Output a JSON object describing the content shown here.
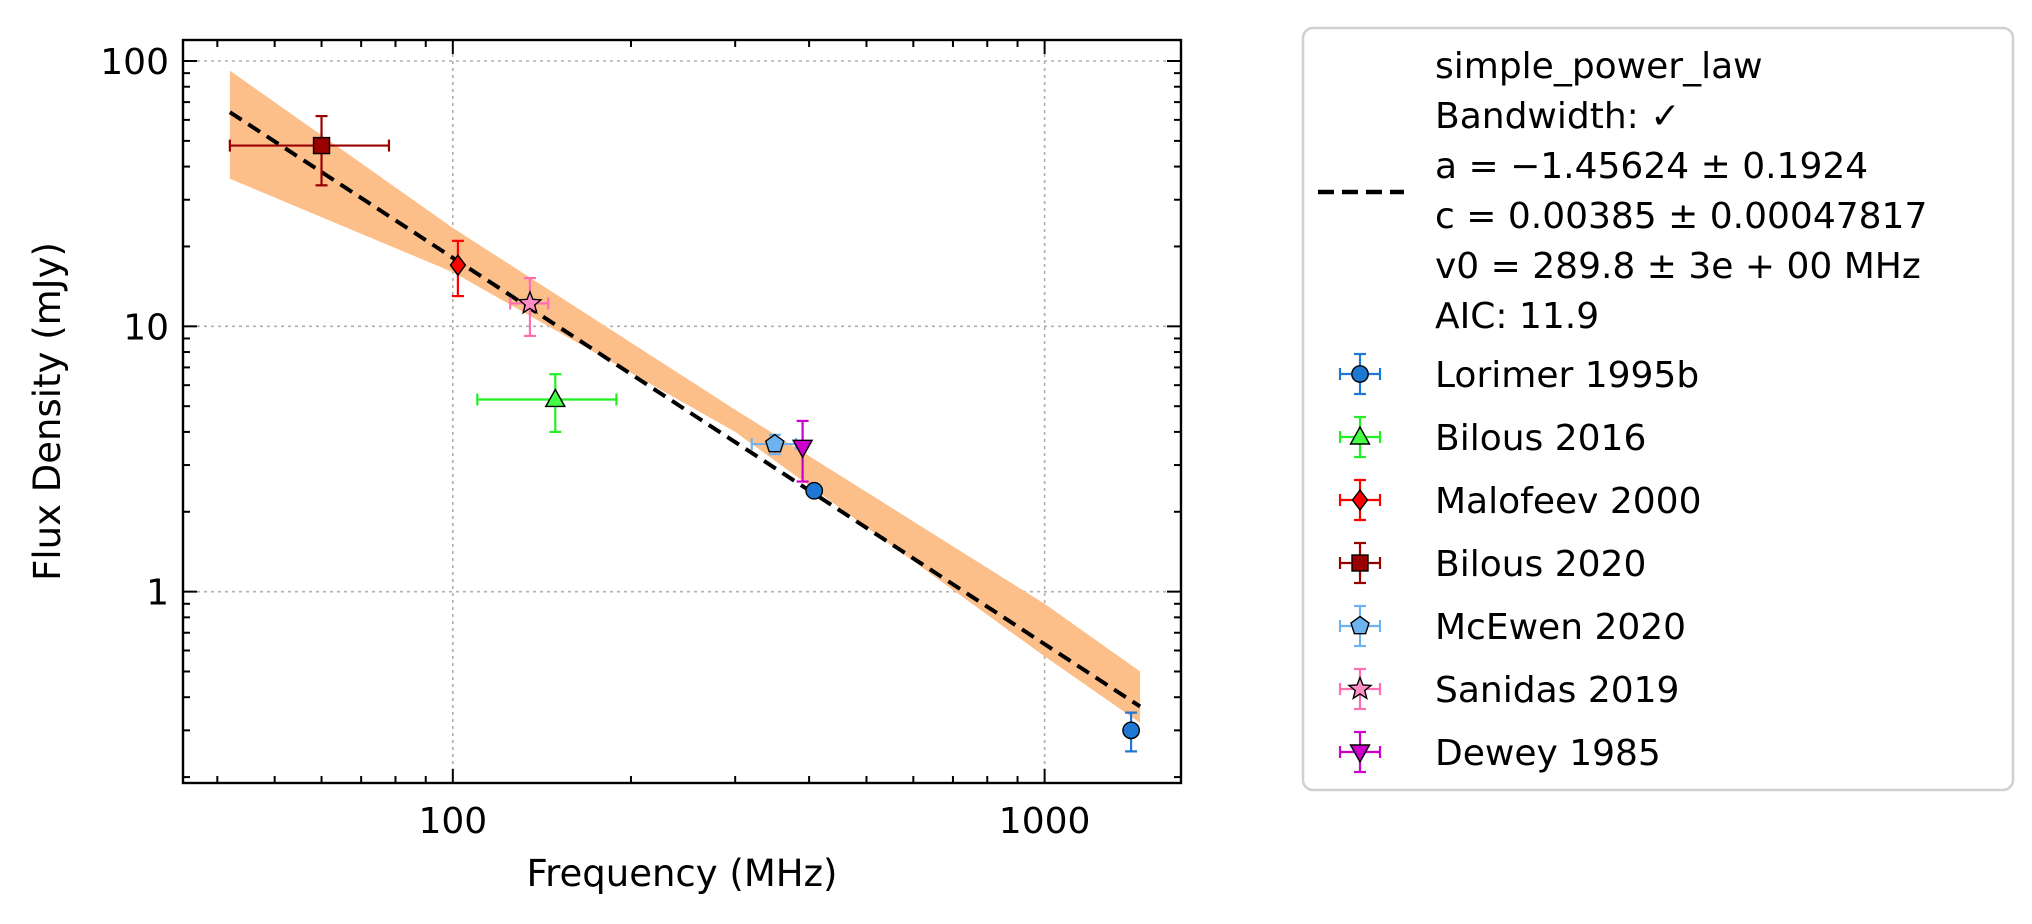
{
  "chart_data": {
    "type": "scatter",
    "title": "",
    "xlabel": "Frequency (MHz)",
    "ylabel": "Flux Density (mJy)",
    "xscale": "log",
    "yscale": "log",
    "xlim": [
      35,
      1700
    ],
    "ylim": [
      0.19,
      120
    ],
    "x_ticks": [
      {
        "value": 100,
        "label": "100"
      },
      {
        "value": 1000,
        "label": "1000"
      }
    ],
    "y_ticks": [
      {
        "value": 1,
        "label": "1"
      },
      {
        "value": 10,
        "label": "10"
      },
      {
        "value": 100,
        "label": "100"
      }
    ],
    "grid": true,
    "legend_position": "outside-right",
    "fit": {
      "name": "simple_power_law",
      "lines": [
        "simple_power_law",
        "Bandwidth: ✓",
        "a = −1.45624 ± 0.1924",
        "c = 0.00385 ± 0.00047817",
        "v0 = 289.8 ± 3e + 00 MHz",
        "AIC: 11.9"
      ],
      "a": -1.45624,
      "a_err": 0.1924,
      "c": 0.00385,
      "c_err": 0.00047817,
      "v0_mhz": 289.8,
      "x_range": [
        42,
        1450
      ],
      "band_lower": [
        [
          42,
          36
        ],
        [
          100,
          16
        ],
        [
          300,
          4.0
        ],
        [
          1000,
          0.57
        ],
        [
          1450,
          0.32
        ]
      ],
      "band_upper": [
        [
          42,
          92
        ],
        [
          100,
          23.5
        ],
        [
          300,
          4.85
        ],
        [
          1000,
          0.9
        ],
        [
          1450,
          0.5
        ]
      ],
      "line_color": "#000000",
      "band_color": "#fdbf8a"
    },
    "series": [
      {
        "name": "Lorimer 1995b",
        "marker": "circle",
        "color": "#1f77d4",
        "err_color": "#1f77d4",
        "points": [
          {
            "x": 408,
            "y": 2.4,
            "xerr": [
              0,
              0
            ],
            "yerr": [
              0,
              0
            ]
          },
          {
            "x": 1400,
            "y": 0.3,
            "xerr": [
              0,
              0
            ],
            "yerr": [
              0.05,
              0.05
            ]
          }
        ]
      },
      {
        "name": "Bilous 2016",
        "marker": "triangle-up",
        "color": "#44ff44",
        "err_color": "#22ee22",
        "points": [
          {
            "x": 149,
            "y": 5.3,
            "xerr": [
              39,
              40
            ],
            "yerr": [
              1.3,
              1.3
            ]
          }
        ]
      },
      {
        "name": "Malofeev 2000",
        "marker": "diamond",
        "color": "#ff0000",
        "err_color": "#ff0000",
        "points": [
          {
            "x": 102,
            "y": 17.0,
            "xerr": [
              0,
              0
            ],
            "yerr": [
              4,
              4
            ]
          }
        ]
      },
      {
        "name": "Bilous 2020",
        "marker": "square",
        "color": "#990000",
        "err_color": "#990000",
        "points": [
          {
            "x": 60,
            "y": 48,
            "xerr": [
              18,
              18
            ],
            "yerr": [
              14,
              14
            ]
          }
        ]
      },
      {
        "name": "McEwen 2020",
        "marker": "pentagon",
        "color": "#6fb2f0",
        "err_color": "#6fb2f0",
        "points": [
          {
            "x": 350,
            "y": 3.6,
            "xerr": [
              30,
              30
            ],
            "yerr": [
              0.3,
              0.3
            ]
          }
        ]
      },
      {
        "name": "Sanidas 2019",
        "marker": "star",
        "color": "#ff8ec5",
        "err_color": "#ff6eb4",
        "points": [
          {
            "x": 135,
            "y": 12.2,
            "xerr": [
              10,
              10
            ],
            "yerr": [
              3.0,
              3.0
            ]
          }
        ]
      },
      {
        "name": "Dewey 1985",
        "marker": "triangle-down",
        "color": "#cc00cc",
        "err_color": "#cc00cc",
        "points": [
          {
            "x": 390,
            "y": 3.5,
            "xerr": [
              0,
              0
            ],
            "yerr": [
              0.9,
              0.9
            ]
          }
        ]
      }
    ]
  }
}
